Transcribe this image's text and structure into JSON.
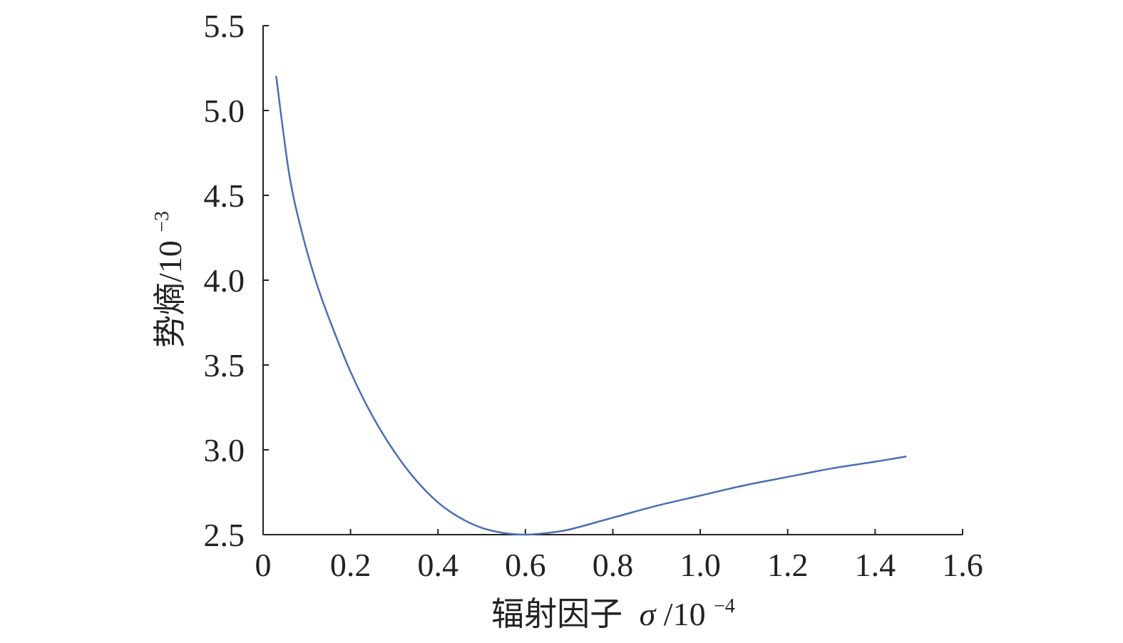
{
  "chart_data": {
    "type": "line",
    "xlabel_main": "辐射因子",
    "xlabel_symbol": "σ",
    "xlabel_unit": "/10",
    "xlabel_exp": "−4",
    "ylabel_main": "势熵/10",
    "ylabel_exp": "−3",
    "xlim": [
      0,
      1.6
    ],
    "ylim": [
      2.5,
      5.5
    ],
    "x_ticks": [
      "0",
      "0.2",
      "0.4",
      "0.6",
      "0.8",
      "1.0",
      "1.2",
      "1.4",
      "1.6"
    ],
    "y_ticks": [
      "2.5",
      "3.0",
      "3.5",
      "4.0",
      "4.5",
      "5.0",
      "5.5"
    ],
    "grid": false,
    "line_color": "#4a6fb3",
    "series": [
      {
        "x": [
          0.03,
          0.06,
          0.09,
          0.12,
          0.15,
          0.2,
          0.25,
          0.3,
          0.35,
          0.4,
          0.45,
          0.5,
          0.55,
          0.6,
          0.65,
          0.7,
          0.8,
          0.9,
          1.0,
          1.1,
          1.2,
          1.3,
          1.4,
          1.47
        ],
        "y": [
          5.2,
          4.62,
          4.27,
          4.0,
          3.78,
          3.46,
          3.2,
          2.99,
          2.82,
          2.69,
          2.6,
          2.54,
          2.51,
          2.5,
          2.51,
          2.53,
          2.6,
          2.67,
          2.73,
          2.79,
          2.84,
          2.89,
          2.93,
          2.96
        ]
      }
    ]
  }
}
